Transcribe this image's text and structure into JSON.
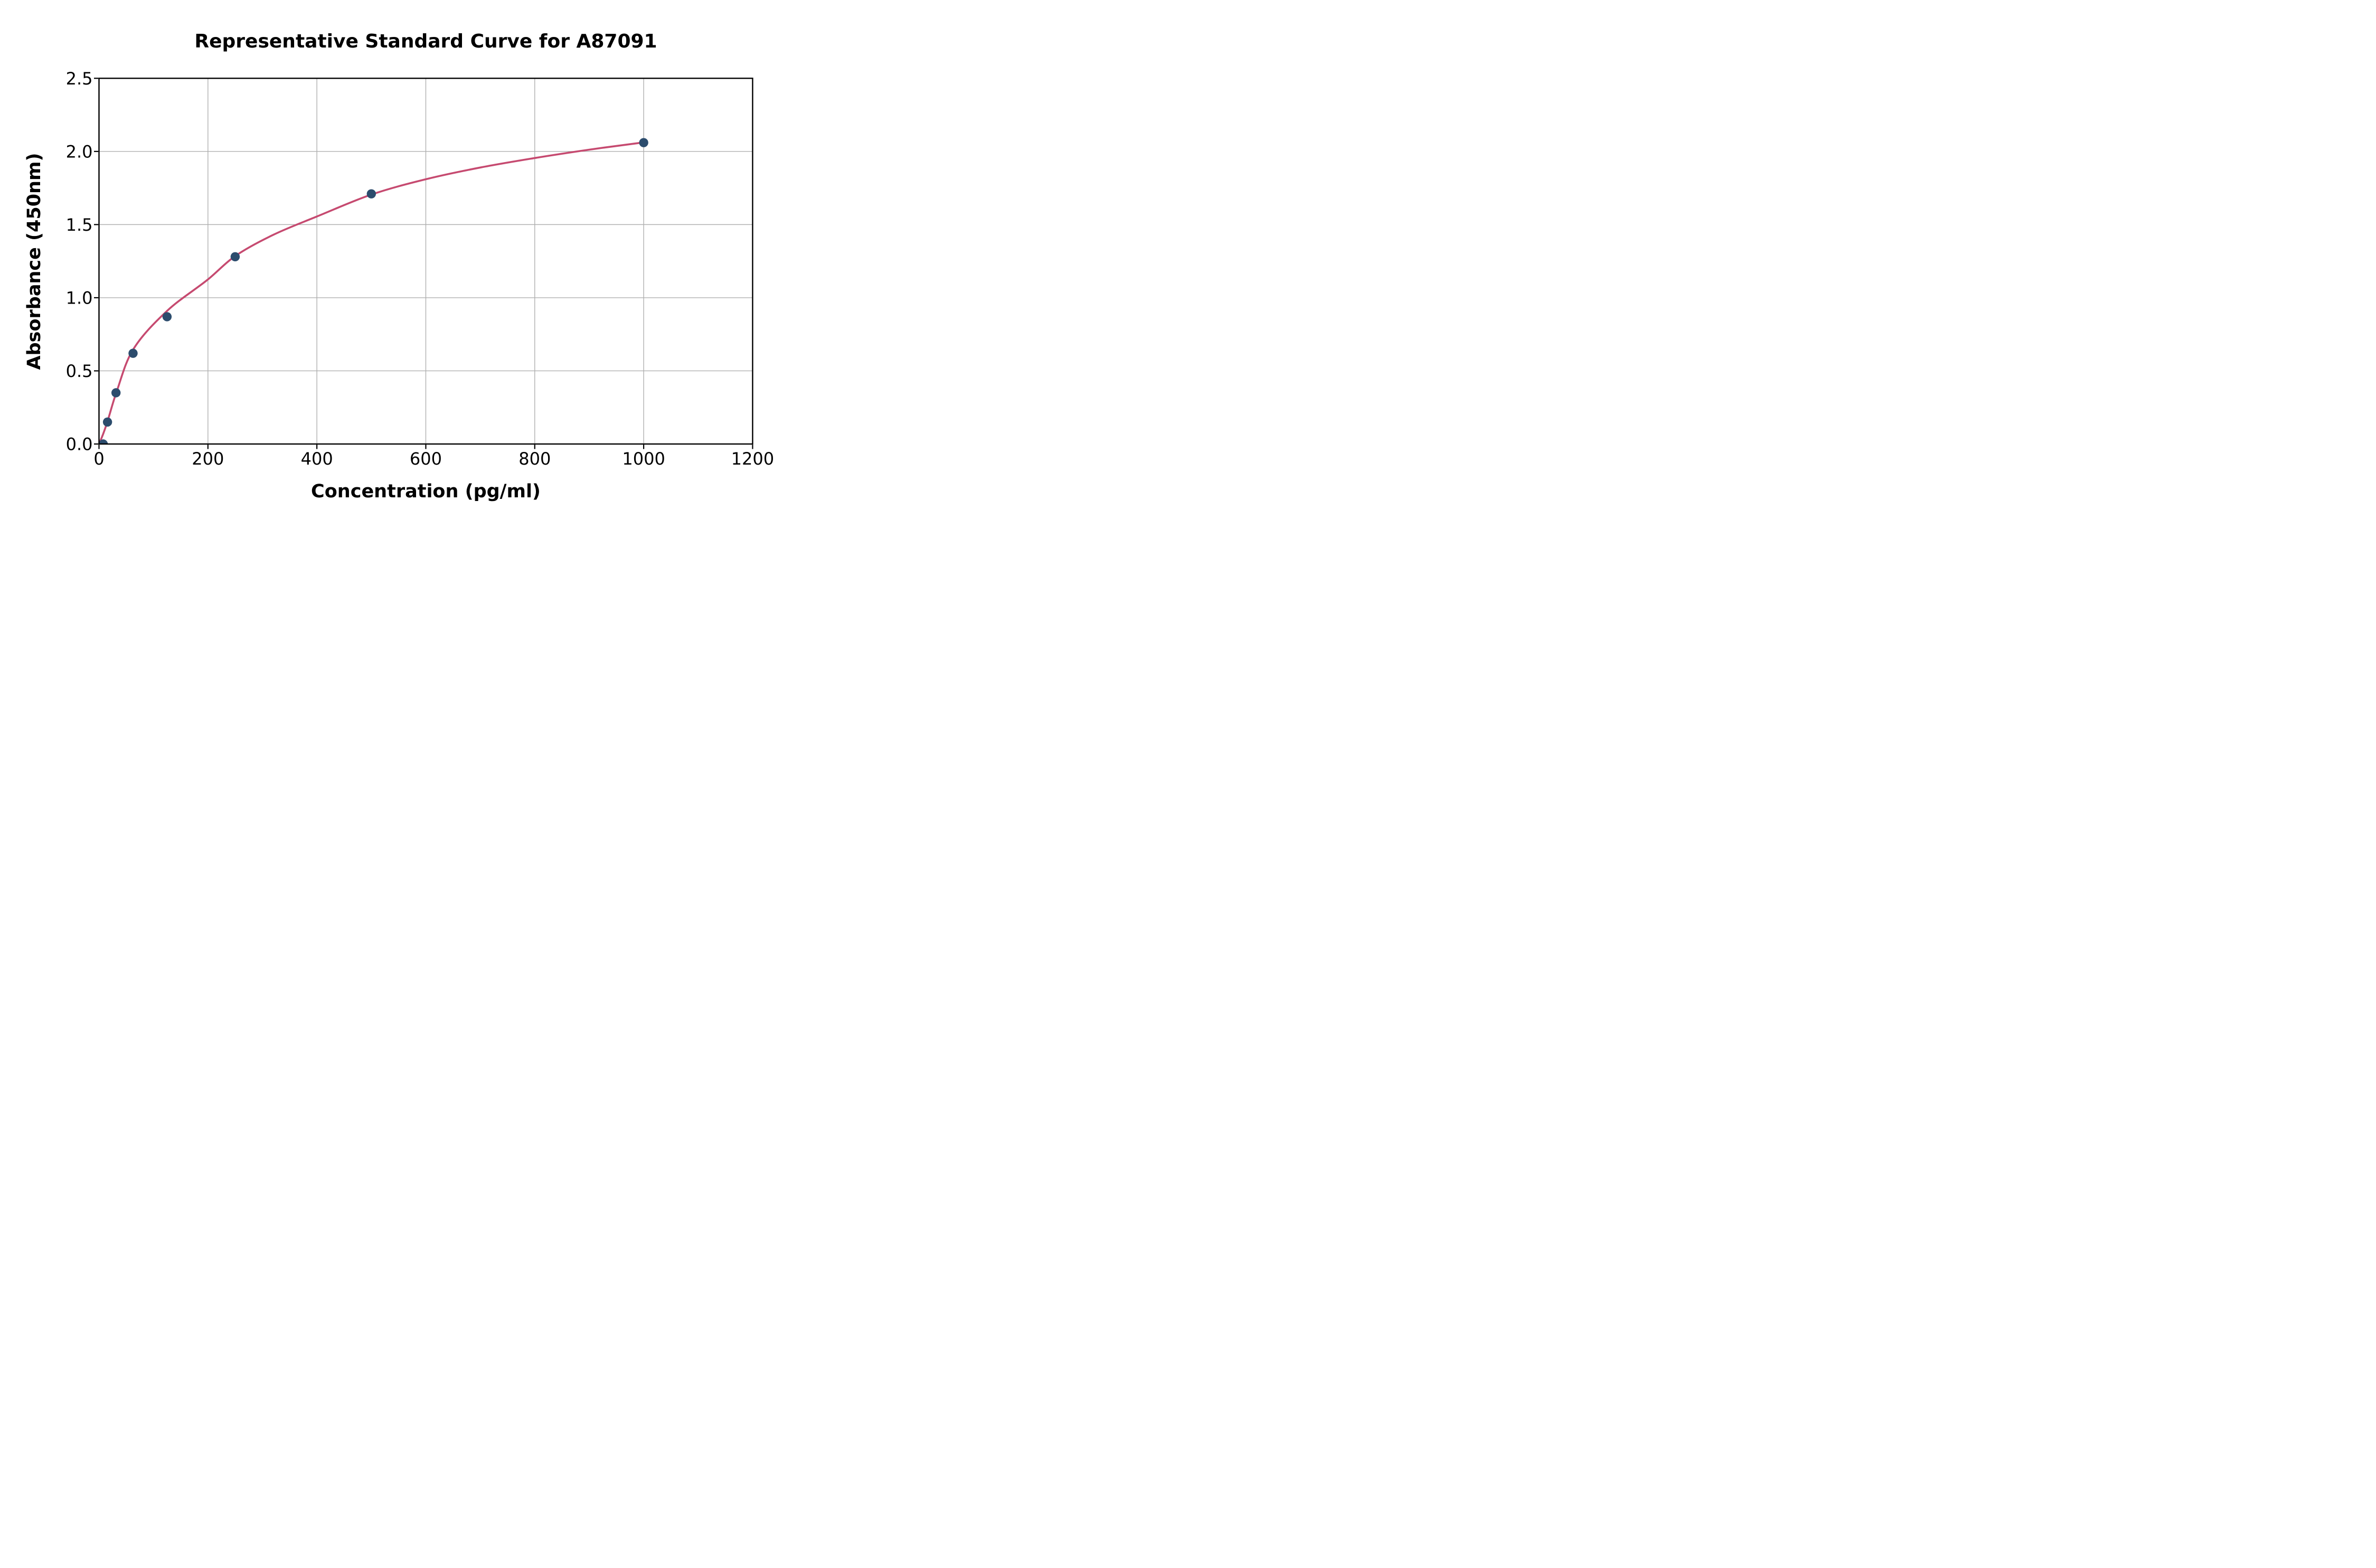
{
  "chart_data": {
    "type": "scatter",
    "title": "Representative Standard Curve for A87091",
    "xlabel": "Concentration (pg/ml)",
    "ylabel": "Absorbance (450nm)",
    "xlim": [
      0,
      1200
    ],
    "ylim": [
      0,
      2.5
    ],
    "x_ticks": [
      0,
      200,
      400,
      600,
      800,
      1000,
      1200
    ],
    "y_ticks": [
      "0.0",
      "0.5",
      "1.0",
      "1.5",
      "2.0",
      "2.5"
    ],
    "grid": true,
    "legend_position": "none",
    "background_color": "#ffffff",
    "grid_color": "#b0b0b0",
    "axis_color": "#000000",
    "series": [
      {
        "name": "standard-points",
        "type": "scatter",
        "color": "#2c4c6d",
        "marker": "circle",
        "marker_radius": 8.7,
        "x": [
          7.8,
          15.6,
          31.25,
          62.5,
          125,
          250,
          500,
          1000
        ],
        "y": [
          0.0,
          0.15,
          0.35,
          0.62,
          0.87,
          1.28,
          1.71,
          2.06
        ]
      },
      {
        "name": "fit-curve",
        "type": "line",
        "color": "#c64a70",
        "stroke_width": 3.6,
        "x": [
          0,
          7.8,
          15.6,
          31.25,
          62.5,
          125,
          200,
          250,
          320,
          400,
          500,
          600,
          700,
          800,
          900,
          1000
        ],
        "y": [
          0.0,
          0.07,
          0.155,
          0.345,
          0.645,
          0.91,
          1.125,
          1.285,
          1.43,
          1.555,
          1.705,
          1.81,
          1.89,
          1.955,
          2.012,
          2.062
        ]
      }
    ]
  }
}
